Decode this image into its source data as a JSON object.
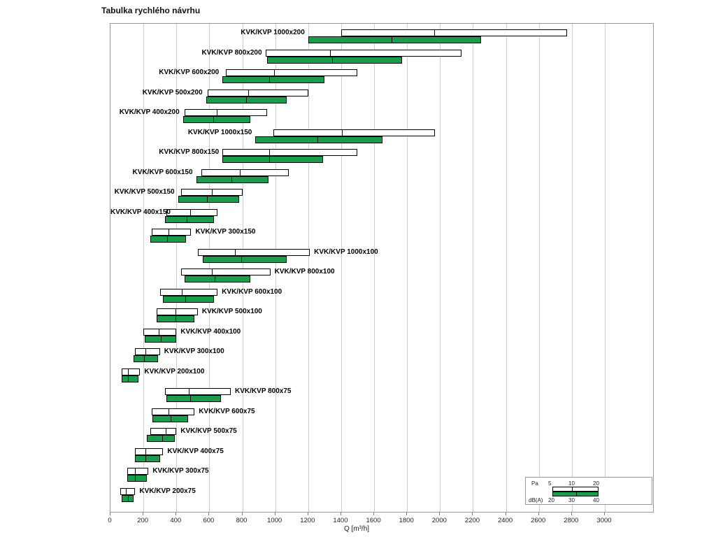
{
  "title": "Tabulka rychlého návrhu",
  "colors": {
    "noise_green": "#1a9c4b",
    "bar_border": "#000000",
    "grid": "#cdcdcd"
  },
  "chart_data": {
    "type": "bar",
    "orientation": "horizontal",
    "title": "Tabulka rychlého návrhu",
    "xlabel": "Q [m³/h]",
    "xlim": [
      0,
      3000
    ],
    "x_ticks": [
      0,
      200,
      400,
      600,
      800,
      1000,
      1200,
      1400,
      1600,
      1800,
      2000,
      2200,
      2400,
      2600,
      2800,
      3000
    ],
    "legend": {
      "pressure": {
        "label": "Pa",
        "ticks": [
          "5",
          "10",
          "20"
        ]
      },
      "noise": {
        "label": "dB(A)",
        "ticks": [
          "20",
          "30",
          "40"
        ]
      }
    },
    "rows": [
      {
        "label": "KVK/KVP 1000x200",
        "label_side": "left",
        "pa_range": [
          1400,
          1960,
          2770
        ],
        "dba_range": [
          1200,
          1700,
          2250
        ]
      },
      {
        "label": "KVK/KVP 800x200",
        "label_side": "left",
        "pa_range": [
          940,
          1330,
          2130
        ],
        "dba_range": [
          950,
          1340,
          1770
        ]
      },
      {
        "label": "KVK/KVP 600x200",
        "label_side": "left",
        "pa_range": [
          700,
          990,
          1500
        ],
        "dba_range": [
          680,
          960,
          1300
        ]
      },
      {
        "label": "KVK/KVP 500x200",
        "label_side": "left",
        "pa_range": [
          590,
          830,
          1200
        ],
        "dba_range": [
          580,
          820,
          1070
        ]
      },
      {
        "label": "KVK/KVP 400x200",
        "label_side": "left",
        "pa_range": [
          450,
          640,
          950
        ],
        "dba_range": [
          440,
          620,
          850
        ]
      },
      {
        "label": "KVK/KVP 1000x150",
        "label_side": "left",
        "pa_range": [
          990,
          1400,
          1970
        ],
        "dba_range": [
          880,
          1250,
          1650
        ]
      },
      {
        "label": "KVK/KVP 800x150",
        "label_side": "left",
        "pa_range": [
          680,
          960,
          1500
        ],
        "dba_range": [
          680,
          960,
          1290
        ]
      },
      {
        "label": "KVK/KVP 600x150",
        "label_side": "left",
        "pa_range": [
          550,
          780,
          1080
        ],
        "dba_range": [
          520,
          730,
          960
        ]
      },
      {
        "label": "KVK/KVP 500x150",
        "label_side": "left",
        "pa_range": [
          430,
          610,
          800
        ],
        "dba_range": [
          410,
          580,
          780
        ]
      },
      {
        "label": "KVK/KVP 400x150",
        "label_side": "left",
        "pa_range": [
          340,
          480,
          650
        ],
        "dba_range": [
          330,
          460,
          630
        ]
      },
      {
        "label": "KVK/KVP 300x150",
        "label_side": "right",
        "pa_range": [
          250,
          350,
          490
        ],
        "dba_range": [
          240,
          340,
          460
        ]
      },
      {
        "label": "KVK/KVP 1000x100",
        "label_side": "right",
        "pa_range": [
          530,
          750,
          1210
        ],
        "dba_range": [
          560,
          790,
          1070
        ]
      },
      {
        "label": "KVK/KVP 800x100",
        "label_side": "right",
        "pa_range": [
          430,
          610,
          970
        ],
        "dba_range": [
          450,
          630,
          850
        ]
      },
      {
        "label": "KVK/KVP 600x100",
        "label_side": "right",
        "pa_range": [
          300,
          430,
          650
        ],
        "dba_range": [
          320,
          450,
          630
        ]
      },
      {
        "label": "KVK/KVP 500x100",
        "label_side": "right",
        "pa_range": [
          280,
          390,
          530
        ],
        "dba_range": [
          280,
          390,
          510
        ]
      },
      {
        "label": "KVK/KVP 400x100",
        "label_side": "right",
        "pa_range": [
          200,
          290,
          400
        ],
        "dba_range": [
          210,
          300,
          400
        ]
      },
      {
        "label": "KVK/KVP 300x100",
        "label_side": "right",
        "pa_range": [
          150,
          210,
          300
        ],
        "dba_range": [
          140,
          200,
          290
        ]
      },
      {
        "label": "KVK/KVP 200x100",
        "label_side": "right",
        "pa_range": [
          70,
          100,
          180
        ],
        "dba_range": [
          70,
          100,
          170
        ]
      },
      {
        "label": "KVK/KVP 800x75",
        "label_side": "right",
        "pa_range": [
          330,
          470,
          730
        ],
        "dba_range": [
          340,
          480,
          670
        ]
      },
      {
        "label": "KVK/KVP 600x75",
        "label_side": "right",
        "pa_range": [
          250,
          350,
          510
        ],
        "dba_range": [
          255,
          360,
          470
        ]
      },
      {
        "label": "KVK/KVP 500x75",
        "label_side": "right",
        "pa_range": [
          240,
          330,
          400
        ],
        "dba_range": [
          220,
          310,
          390
        ]
      },
      {
        "label": "KVK/KVP 400x75",
        "label_side": "right",
        "pa_range": [
          150,
          210,
          320
        ],
        "dba_range": [
          150,
          210,
          300
        ]
      },
      {
        "label": "KVK/KVP 300x75",
        "label_side": "right",
        "pa_range": [
          100,
          145,
          230
        ],
        "dba_range": [
          100,
          145,
          220
        ]
      },
      {
        "label": "KVK/KVP 200x75",
        "label_side": "right",
        "pa_range": [
          60,
          90,
          150
        ],
        "dba_range": [
          70,
          100,
          140
        ]
      }
    ]
  }
}
